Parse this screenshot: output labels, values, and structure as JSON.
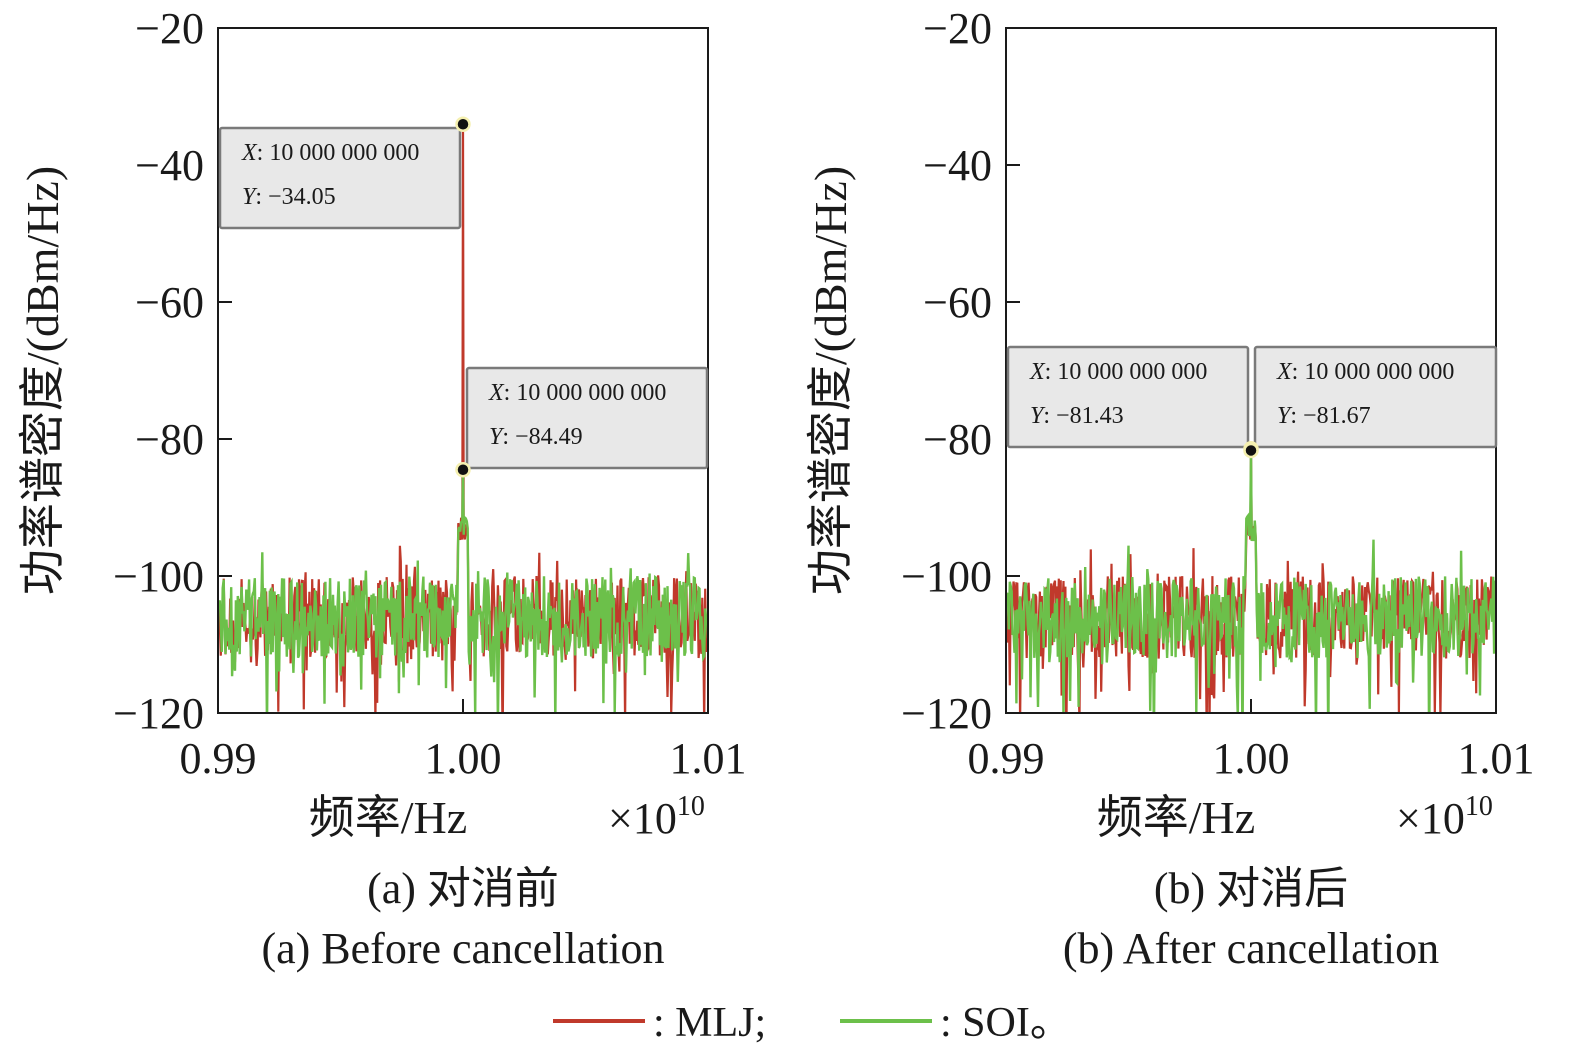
{
  "chart_data": [
    {
      "type": "line",
      "panel": "a",
      "xlabel": "频率/Hz",
      "x_exponent": "×10",
      "x_exponent_sup": "10",
      "ylabel": "功率谱密度/(dBm/Hz)",
      "xlim": [
        0.99,
        1.01
      ],
      "ylim": [
        -120,
        -20
      ],
      "xticks": [
        0.99,
        1.0,
        1.01
      ],
      "xtick_labels": [
        "0.99",
        "1.00",
        "1.01"
      ],
      "yticks": [
        -120,
        -100,
        -80,
        -60,
        -40,
        -20
      ],
      "ytick_labels": [
        "−120",
        "−100",
        "−80",
        "−60",
        "−40",
        "−20"
      ],
      "caption_zh": "(a) 对消前",
      "caption_en": "(a) Before cancellation",
      "series": [
        {
          "name": "MLJ",
          "color": "#c0392b",
          "peak_x": 1.0,
          "peak_y": -34.05,
          "noise_floor": -106
        },
        {
          "name": "SOI",
          "color": "#6cc04a",
          "peak_x": 1.0,
          "peak_y": -84.49,
          "noise_floor": -106
        }
      ],
      "datatips": [
        {
          "x_label": "X",
          "x_value": ": 10 000 000 000",
          "y_label": "Y",
          "y_value": ": −34.05",
          "point_x": 1.0,
          "point_y": -34.05
        },
        {
          "x_label": "X",
          "x_value": ": 10 000 000 000",
          "y_label": "Y",
          "y_value": ": −84.49",
          "point_x": 1.0,
          "point_y": -84.49
        }
      ]
    },
    {
      "type": "line",
      "panel": "b",
      "xlabel": "频率/Hz",
      "x_exponent": "×10",
      "x_exponent_sup": "10",
      "ylabel": "功率谱密度/(dBm/Hz)",
      "xlim": [
        0.99,
        1.01
      ],
      "ylim": [
        -120,
        -20
      ],
      "xticks": [
        0.99,
        1.0,
        1.01
      ],
      "xtick_labels": [
        "0.99",
        "1.00",
        "1.01"
      ],
      "yticks": [
        -120,
        -100,
        -80,
        -60,
        -40,
        -20
      ],
      "ytick_labels": [
        "−120",
        "−100",
        "−80",
        "−60",
        "−40",
        "−20"
      ],
      "caption_zh": "(b) 对消后",
      "caption_en": "(b) After cancellation",
      "series": [
        {
          "name": "MLJ",
          "color": "#c0392b",
          "peak_x": 1.0,
          "peak_y": -81.43,
          "noise_floor": -106
        },
        {
          "name": "SOI",
          "color": "#6cc04a",
          "peak_x": 1.0,
          "peak_y": -81.67,
          "noise_floor": -106
        }
      ],
      "datatips": [
        {
          "x_label": "X",
          "x_value": ": 10 000 000 000",
          "y_label": "Y",
          "y_value": ": −81.43",
          "point_x": 1.0,
          "point_y": -81.43
        },
        {
          "x_label": "X",
          "x_value": ": 10 000 000 000",
          "y_label": "Y",
          "y_value": ": −81.67",
          "point_x": 1.0,
          "point_y": -81.67
        }
      ]
    }
  ],
  "legend": {
    "items": [
      {
        "label": ": MLJ;",
        "color": "#c0392b"
      },
      {
        "label": ": SOI。",
        "color": "#6cc04a"
      }
    ]
  }
}
